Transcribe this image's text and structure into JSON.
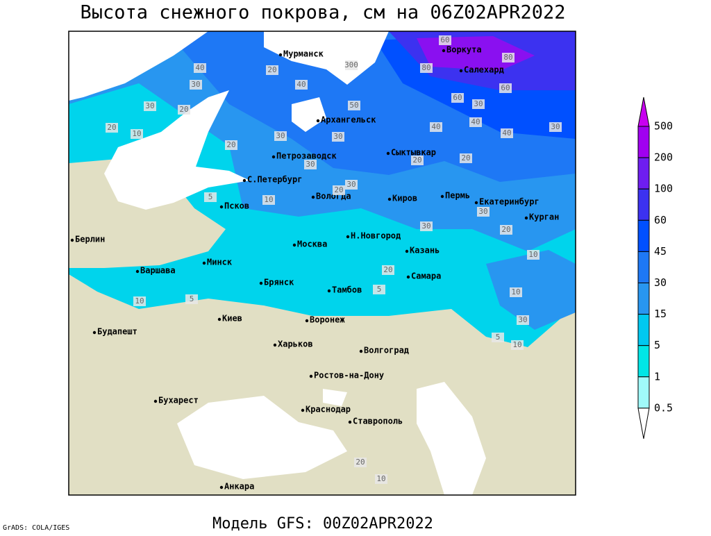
{
  "header": {
    "title": "Высота снежного покрова, см на 06Z02APR2022"
  },
  "footer": {
    "model": "Модель GFS: 00Z02APR2022",
    "credit": "GrADS: COLA/IGES"
  },
  "legend": {
    "levels": [
      500,
      200,
      100,
      60,
      45,
      30,
      15,
      5,
      1,
      0.5
    ],
    "colors": [
      "#c800f0",
      "#a000f0",
      "#6e1ef0",
      "#3c32f0",
      "#0050ff",
      "#1e78f5",
      "#2896f0",
      "#00c8f0",
      "#00e6e6",
      "#a0fafa",
      "#ffffff"
    ]
  },
  "map": {
    "cities": [
      "Мурманск",
      "Воркута",
      "Салехард",
      "Архангельск",
      "Сыктывкар",
      "Петрозаводск",
      "С.Петербург",
      "Вологда",
      "Киров",
      "Пермь",
      "Екатеринбург",
      "Курган",
      "Псков",
      "Н.Новгород",
      "Казань",
      "Москва",
      "Берлин",
      "Варшава",
      "Минск",
      "Брянск",
      "Тамбов",
      "Самара",
      "Киев",
      "Воронеж",
      "Будапешт",
      "Харьков",
      "Волгоград",
      "Ростов-на-Дону",
      "Бухарест",
      "Краснодар",
      "Ставрополь",
      "Анкара"
    ],
    "contour_labels": [
      40,
      30,
      20,
      30,
      20,
      10,
      20,
      40,
      50,
      30,
      20,
      30,
      40,
      40,
      30,
      60,
      60,
      80,
      80,
      60,
      30,
      20,
      20,
      30,
      40,
      30,
      20,
      30,
      20,
      10,
      30,
      20,
      5,
      10,
      5,
      10,
      5,
      10,
      30,
      5,
      10,
      20,
      10,
      300
    ]
  }
}
